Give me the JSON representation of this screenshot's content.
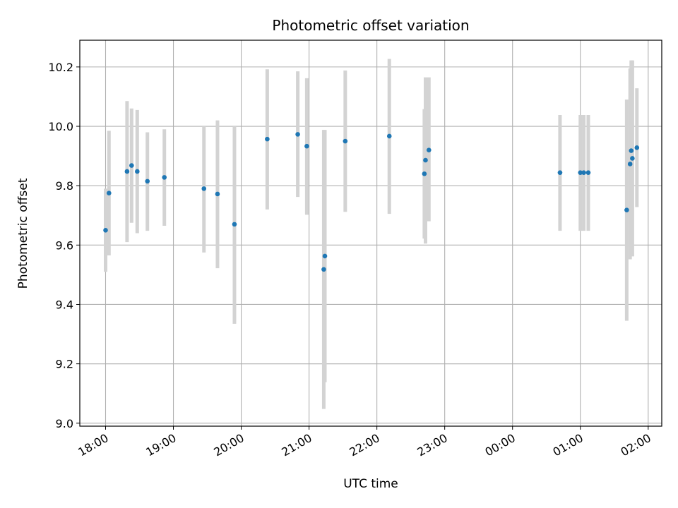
{
  "chart_data": {
    "type": "scatter",
    "title": "Photometric offset variation",
    "xlabel": "UTC time",
    "ylabel": "Photometric offset",
    "x_tick_labels": [
      "18:00",
      "19:00",
      "20:00",
      "21:00",
      "22:00",
      "23:00",
      "00:00",
      "01:00",
      "02:00"
    ],
    "y_tick_labels": [
      "9.0",
      "9.2",
      "9.4",
      "9.6",
      "9.8",
      "10.0",
      "10.2"
    ],
    "y_ticks": [
      9.0,
      9.2,
      9.4,
      9.6,
      9.8,
      10.0,
      10.2
    ],
    "xlim_hours_from_1800": [
      -0.38,
      8.2
    ],
    "ylim": [
      8.99,
      10.29
    ],
    "grid": true,
    "colors": {
      "point": "#1f77b4",
      "errorbar": "#d3d3d3",
      "grid": "#b0b0b0"
    },
    "points": [
      {
        "t": "18:00",
        "y": 9.65,
        "ylo": 9.51,
        "yhi": 9.79
      },
      {
        "t": "18:03",
        "y": 9.775,
        "ylo": 9.565,
        "yhi": 9.985
      },
      {
        "t": "18:19",
        "y": 9.848,
        "ylo": 9.61,
        "yhi": 10.085
      },
      {
        "t": "18:23",
        "y": 9.868,
        "ylo": 9.675,
        "yhi": 10.06
      },
      {
        "t": "18:28",
        "y": 9.848,
        "ylo": 9.64,
        "yhi": 10.055
      },
      {
        "t": "18:37",
        "y": 9.815,
        "ylo": 9.648,
        "yhi": 9.98
      },
      {
        "t": "18:52",
        "y": 9.828,
        "ylo": 9.665,
        "yhi": 9.99
      },
      {
        "t": "19:27",
        "y": 9.79,
        "ylo": 9.575,
        "yhi": 10.0
      },
      {
        "t": "19:39",
        "y": 9.772,
        "ylo": 9.522,
        "yhi": 10.02
      },
      {
        "t": "19:54",
        "y": 9.67,
        "ylo": 9.335,
        "yhi": 10.0
      },
      {
        "t": "20:23",
        "y": 9.957,
        "ylo": 9.72,
        "yhi": 10.192
      },
      {
        "t": "20:50",
        "y": 9.973,
        "ylo": 9.762,
        "yhi": 10.185
      },
      {
        "t": "20:58",
        "y": 9.933,
        "ylo": 9.702,
        "yhi": 10.162
      },
      {
        "t": "21:13",
        "y": 9.518,
        "ylo": 9.048,
        "yhi": 9.988
      },
      {
        "t": "21:14",
        "y": 9.563,
        "ylo": 9.138,
        "yhi": 9.988
      },
      {
        "t": "21:32",
        "y": 9.95,
        "ylo": 9.712,
        "yhi": 10.188
      },
      {
        "t": "22:11",
        "y": 9.967,
        "ylo": 9.705,
        "yhi": 10.227
      },
      {
        "t": "22:42",
        "y": 9.84,
        "ylo": 9.622,
        "yhi": 10.058
      },
      {
        "t": "22:43",
        "y": 9.886,
        "ylo": 9.605,
        "yhi": 10.165
      },
      {
        "t": "22:46",
        "y": 9.92,
        "ylo": 9.68,
        "yhi": 10.165
      },
      {
        "t": "00:42",
        "y": 9.844,
        "ylo": 9.648,
        "yhi": 10.038
      },
      {
        "t": "01:00",
        "y": 9.844,
        "ylo": 9.648,
        "yhi": 10.038
      },
      {
        "t": "01:03",
        "y": 9.844,
        "ylo": 9.648,
        "yhi": 10.038
      },
      {
        "t": "01:07",
        "y": 9.844,
        "ylo": 9.648,
        "yhi": 10.038
      },
      {
        "t": "01:41",
        "y": 9.718,
        "ylo": 9.345,
        "yhi": 10.09
      },
      {
        "t": "01:44",
        "y": 9.873,
        "ylo": 9.552,
        "yhi": 10.195
      },
      {
        "t": "01:45",
        "y": 9.918,
        "ylo": 9.612,
        "yhi": 10.222
      },
      {
        "t": "01:46",
        "y": 9.892,
        "ylo": 9.562,
        "yhi": 10.222
      },
      {
        "t": "01:50",
        "y": 9.928,
        "ylo": 9.728,
        "yhi": 10.128
      }
    ]
  }
}
